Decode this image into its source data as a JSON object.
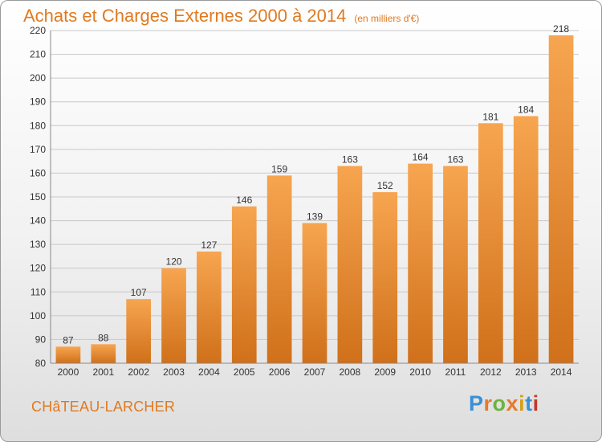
{
  "header": {
    "title": "Achats et Charges Externes 2000 à 2014",
    "unit": "(en milliers d'€)"
  },
  "footer": {
    "city": "CHâTEAU-LARCHER",
    "brand_letters": [
      "P",
      "r",
      "o",
      "x",
      "i",
      "t",
      "i"
    ]
  },
  "colors": {
    "accent": "#e07a20",
    "bar_top": "#f7a550",
    "bar_bottom": "#d0701a",
    "brand": [
      "#3a8fd6",
      "#e8792a",
      "#6cb33f",
      "#e8792a",
      "#d4a017",
      "#3a8fd6",
      "#c0392b"
    ]
  },
  "chart_data": {
    "type": "bar",
    "title": "Achats et Charges Externes 2000 à 2014",
    "subtitle": "(en milliers d'€)",
    "categories": [
      "2000",
      "2001",
      "2002",
      "2003",
      "2004",
      "2005",
      "2006",
      "2007",
      "2008",
      "2009",
      "2010",
      "2011",
      "2012",
      "2013",
      "2014"
    ],
    "values": [
      87,
      88,
      107,
      120,
      127,
      146,
      159,
      139,
      163,
      152,
      164,
      163,
      181,
      184,
      218
    ],
    "yticks": [
      80,
      90,
      100,
      110,
      120,
      130,
      140,
      150,
      160,
      170,
      180,
      190,
      200,
      210,
      220
    ],
    "ylim": [
      80,
      220
    ],
    "grid": true,
    "xlabel": "",
    "ylabel": ""
  }
}
